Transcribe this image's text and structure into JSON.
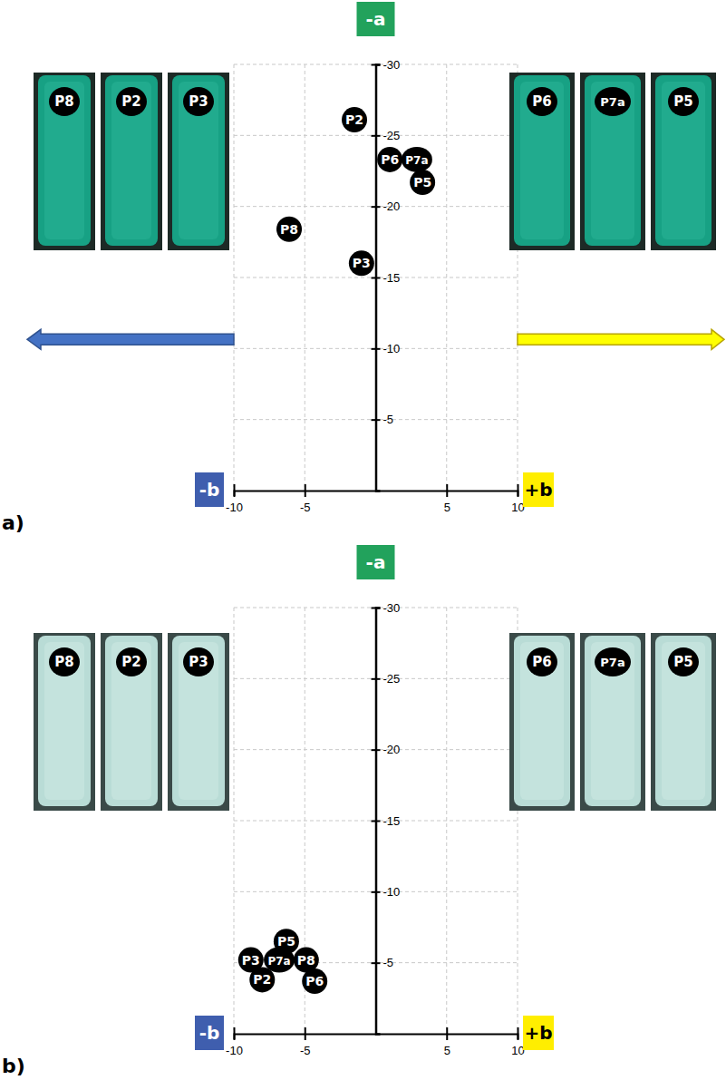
{
  "chart_data": [
    {
      "type": "scatter",
      "title": "a)",
      "y_label": "-a",
      "x_label_left": "-b",
      "x_label_right": "+b",
      "labels": [
        "P2",
        "P6",
        "P7a",
        "P5",
        "P8",
        "P3"
      ],
      "x": [
        -1.5,
        1.0,
        2.9,
        3.3,
        -6.1,
        -1.0
      ],
      "values": [
        -26.1,
        -23.3,
        -23.3,
        -21.7,
        -18.4,
        -16.0
      ],
      "xlim": [
        -10,
        10
      ],
      "xticks": [
        -10,
        -5,
        5,
        10
      ],
      "ylim": [
        0,
        -30
      ],
      "yticks": [
        -30,
        -25,
        -20,
        -15,
        -10,
        -5
      ],
      "grid": true,
      "marker": "circle",
      "color": "#000000",
      "photos": {
        "left": [
          "P8",
          "P2",
          "P3"
        ],
        "right": [
          "P6",
          "P7a",
          "P5"
        ]
      }
    },
    {
      "type": "scatter",
      "title": "b)",
      "y_label": "-a",
      "x_label_left": "-b",
      "x_label_right": "+b",
      "labels": [
        "P5",
        "P3",
        "P7a",
        "P8",
        "P2",
        "P6"
      ],
      "x": [
        -6.3,
        -8.8,
        -6.8,
        -4.9,
        -8.0,
        -4.3
      ],
      "values": [
        -6.5,
        -5.2,
        -5.2,
        -5.2,
        -3.8,
        -3.7
      ],
      "xlim": [
        -10,
        10
      ],
      "xticks": [
        -10,
        -5,
        5,
        10
      ],
      "ylim": [
        0,
        -30
      ],
      "yticks": [
        -30,
        -25,
        -20,
        -15,
        -10,
        -5
      ],
      "grid": true,
      "marker": "circle",
      "color": "#000000",
      "photos": {
        "left": [
          "P8",
          "P2",
          "P3"
        ],
        "right": [
          "P6",
          "P7a",
          "P5"
        ]
      }
    }
  ]
}
